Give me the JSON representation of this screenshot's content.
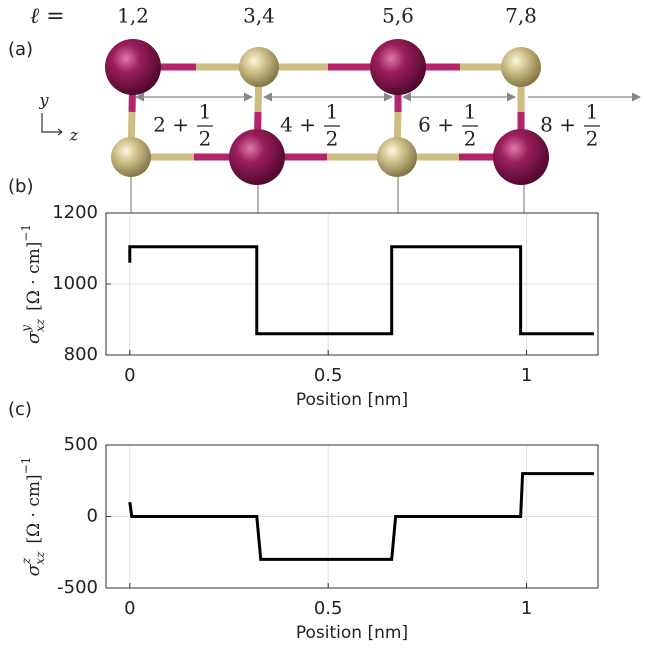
{
  "diagram": {
    "panel_label": "(a)",
    "ell_label": "ℓ =",
    "ell_values": [
      "1,2",
      "3,4",
      "5,6",
      "7,8"
    ],
    "axis_y": "y",
    "axis_z": "z",
    "spacings": [
      {
        "whole": "2 +",
        "num": "1",
        "den": "2"
      },
      {
        "whole": "4 +",
        "num": "1",
        "den": "2"
      },
      {
        "whole": "6 +",
        "num": "1",
        "den": "2"
      },
      {
        "whole": "8 +",
        "num": "1",
        "den": "2"
      }
    ]
  },
  "chart_data": [
    {
      "type": "line",
      "panel_label": "(b)",
      "xlabel": "Position [nm]",
      "ylabel": {
        "base": "σ",
        "sup": "y",
        "sub": "xz",
        "unit": "[Ω · cm]",
        "exp": "−1"
      },
      "x": [
        0,
        0,
        0.32,
        0.32,
        0.66,
        0.66,
        0.985,
        0.985,
        1.17
      ],
      "values": [
        1060,
        1105,
        1105,
        860,
        860,
        1105,
        1105,
        860,
        860
      ],
      "color": "#000000",
      "xlim": [
        -0.06,
        1.18
      ],
      "xticks": [
        0,
        0.5,
        1
      ],
      "ylim": [
        800,
        1200
      ],
      "yticks": [
        800,
        1000,
        1200
      ],
      "grid": true
    },
    {
      "type": "line",
      "panel_label": "(c)",
      "xlabel": "Position [nm]",
      "ylabel": {
        "base": "σ",
        "sup": "z",
        "sub": "xz",
        "unit": "[Ω · cm]",
        "exp": "−1"
      },
      "x": [
        0,
        0.005,
        0.32,
        0.33,
        0.66,
        0.67,
        0.985,
        0.99,
        1.17
      ],
      "values": [
        100,
        0,
        0,
        -300,
        -300,
        0,
        0,
        300,
        300
      ],
      "color": "#000000",
      "xlim": [
        -0.06,
        1.18
      ],
      "xticks": [
        0,
        0.5,
        1
      ],
      "ylim": [
        -500,
        500
      ],
      "yticks": [
        -500,
        0,
        500
      ],
      "grid": true
    }
  ]
}
